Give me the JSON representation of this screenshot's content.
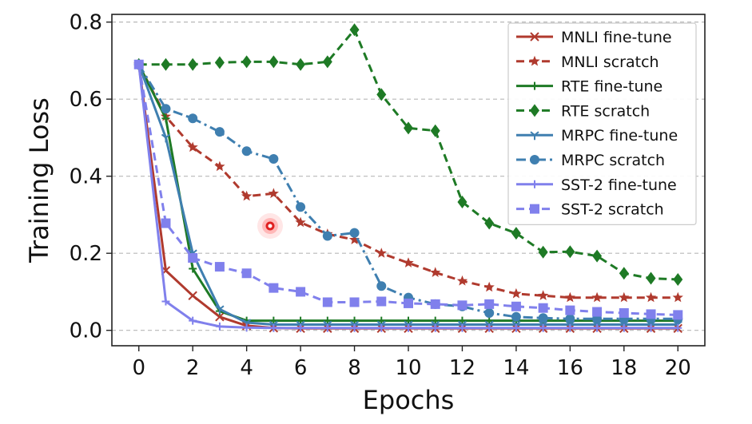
{
  "chart_data": {
    "type": "line",
    "xlabel": "Epochs",
    "ylabel": "Training Loss",
    "xlim": [
      -1,
      21
    ],
    "ylim": [
      -0.04,
      0.82
    ],
    "xticks": [
      "0",
      "2",
      "4",
      "6",
      "8",
      "10",
      "12",
      "14",
      "16",
      "18",
      "20"
    ],
    "yticks": [
      "0.0",
      "0.2",
      "0.4",
      "0.6",
      "0.8"
    ],
    "grid": "horizontal dashed",
    "legend_position": "top-right",
    "series": [
      {
        "name": "MNLI fine-tune",
        "color": "#b03a2e",
        "dash": "solid",
        "marker": "x",
        "x": [
          0,
          1,
          2,
          3,
          4,
          5,
          6,
          7,
          8,
          9,
          10,
          11,
          12,
          13,
          14,
          15,
          16,
          17,
          18,
          19,
          20
        ],
        "y": [
          0.69,
          0.155,
          0.09,
          0.035,
          0.012,
          0.006,
          0.005,
          0.005,
          0.005,
          0.005,
          0.005,
          0.005,
          0.005,
          0.005,
          0.005,
          0.005,
          0.005,
          0.005,
          0.005,
          0.005,
          0.005
        ]
      },
      {
        "name": "MNLI scratch",
        "color": "#b03a2e",
        "dash": "dashed",
        "marker": "star",
        "x": [
          0,
          1,
          2,
          3,
          4,
          5,
          6,
          7,
          8,
          9,
          10,
          11,
          12,
          13,
          14,
          15,
          16,
          17,
          18,
          19,
          20
        ],
        "y": [
          0.69,
          0.555,
          0.475,
          0.425,
          0.348,
          0.355,
          0.28,
          0.25,
          0.235,
          0.2,
          0.175,
          0.15,
          0.128,
          0.112,
          0.095,
          0.09,
          0.085,
          0.085,
          0.085,
          0.085,
          0.085
        ]
      },
      {
        "name": "RTE fine-tune",
        "color": "#1e7a25",
        "dash": "solid",
        "marker": "plus",
        "x": [
          0,
          1,
          2,
          3,
          4,
          5,
          6,
          7,
          8,
          9,
          10,
          11,
          12,
          13,
          14,
          15,
          16,
          17,
          18,
          19,
          20
        ],
        "y": [
          0.69,
          0.55,
          0.16,
          0.05,
          0.025,
          0.025,
          0.025,
          0.025,
          0.025,
          0.025,
          0.025,
          0.025,
          0.025,
          0.025,
          0.025,
          0.025,
          0.025,
          0.025,
          0.025,
          0.025,
          0.025
        ]
      },
      {
        "name": "RTE scratch",
        "color": "#1e7a25",
        "dash": "dashed",
        "marker": "diamond",
        "x": [
          0,
          1,
          2,
          3,
          4,
          5,
          6,
          7,
          8,
          9,
          10,
          11,
          12,
          13,
          14,
          15,
          16,
          17,
          18,
          19,
          20
        ],
        "y": [
          0.69,
          0.69,
          0.69,
          0.695,
          0.697,
          0.697,
          0.69,
          0.697,
          0.78,
          0.612,
          0.525,
          0.518,
          0.333,
          0.278,
          0.252,
          0.203,
          0.204,
          0.193,
          0.148,
          0.135,
          0.132
        ]
      },
      {
        "name": "MRPC fine-tune",
        "color": "#3f7fb0",
        "dash": "solid",
        "marker": "tri",
        "x": [
          0,
          1,
          2,
          3,
          4,
          5,
          6,
          7,
          8,
          9,
          10,
          11,
          12,
          13,
          14,
          15,
          16,
          17,
          18,
          19,
          20
        ],
        "y": [
          0.69,
          0.5,
          0.2,
          0.055,
          0.02,
          0.015,
          0.015,
          0.015,
          0.015,
          0.015,
          0.015,
          0.015,
          0.015,
          0.015,
          0.015,
          0.015,
          0.015,
          0.015,
          0.015,
          0.015,
          0.015
        ]
      },
      {
        "name": "MRPC scratch",
        "color": "#3f7fb0",
        "dash": "dashdot",
        "marker": "circle",
        "x": [
          0,
          1,
          2,
          3,
          4,
          5,
          6,
          7,
          8,
          9,
          10,
          11,
          12,
          13,
          14,
          15,
          16,
          17,
          18,
          19,
          20
        ],
        "y": [
          0.69,
          0.575,
          0.55,
          0.515,
          0.465,
          0.445,
          0.32,
          0.245,
          0.253,
          0.115,
          0.085,
          0.068,
          0.062,
          0.045,
          0.035,
          0.032,
          0.03,
          0.03,
          0.03,
          0.03,
          0.03
        ]
      },
      {
        "name": "SST-2 fine-tune",
        "color": "#8080ec",
        "dash": "solid",
        "marker": "plus",
        "x": [
          0,
          1,
          2,
          3,
          4,
          5,
          6,
          7,
          8,
          9,
          10,
          11,
          12,
          13,
          14,
          15,
          16,
          17,
          18,
          19,
          20
        ],
        "y": [
          0.69,
          0.075,
          0.025,
          0.01,
          0.007,
          0.006,
          0.006,
          0.006,
          0.006,
          0.006,
          0.006,
          0.006,
          0.006,
          0.006,
          0.006,
          0.006,
          0.006,
          0.006,
          0.006,
          0.006,
          0.006
        ]
      },
      {
        "name": "SST-2 scratch",
        "color": "#8080ec",
        "dash": "dashed",
        "marker": "square",
        "x": [
          0,
          1,
          2,
          3,
          4,
          5,
          6,
          7,
          8,
          9,
          10,
          11,
          12,
          13,
          14,
          15,
          16,
          17,
          18,
          19,
          20
        ],
        "y": [
          0.69,
          0.278,
          0.188,
          0.165,
          0.148,
          0.11,
          0.1,
          0.073,
          0.073,
          0.075,
          0.07,
          0.068,
          0.065,
          0.068,
          0.062,
          0.058,
          0.052,
          0.048,
          0.045,
          0.042,
          0.04
        ]
      }
    ]
  }
}
